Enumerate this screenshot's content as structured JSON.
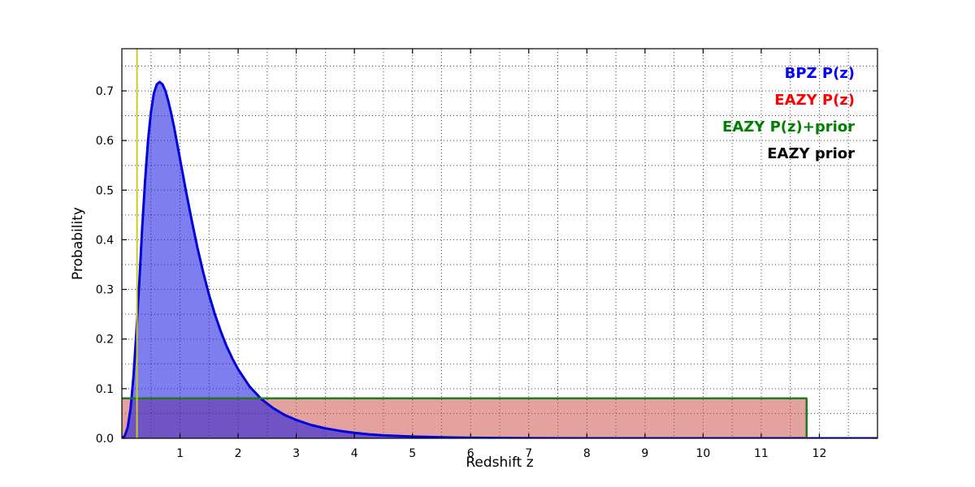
{
  "figure": {
    "background": "#ffffff",
    "frame_color": "#000000"
  },
  "chart_data": {
    "type": "line",
    "title": "",
    "xlabel": "Redshift z",
    "ylabel": "Probability",
    "xlim": [
      0,
      13
    ],
    "ylim": [
      0,
      0.785
    ],
    "grid": {
      "on": true,
      "x_step": 0.5,
      "y_step": 0.05,
      "style": "dotted"
    },
    "xticks": [
      {
        "v": 1,
        "label": "1"
      },
      {
        "v": 2,
        "label": "2"
      },
      {
        "v": 3,
        "label": "3"
      },
      {
        "v": 4,
        "label": "4"
      },
      {
        "v": 5,
        "label": "5"
      },
      {
        "v": 6,
        "label": "6"
      },
      {
        "v": 7,
        "label": "7"
      },
      {
        "v": 8,
        "label": "8"
      },
      {
        "v": 9,
        "label": "9"
      },
      {
        "v": 10,
        "label": "10"
      },
      {
        "v": 11,
        "label": "11"
      },
      {
        "v": 12,
        "label": "12"
      }
    ],
    "yticks": [
      {
        "v": 0.0,
        "label": "0.0"
      },
      {
        "v": 0.1,
        "label": "0.1"
      },
      {
        "v": 0.2,
        "label": "0.2"
      },
      {
        "v": 0.3,
        "label": "0.3"
      },
      {
        "v": 0.4,
        "label": "0.4"
      },
      {
        "v": 0.5,
        "label": "0.5"
      },
      {
        "v": 0.6,
        "label": "0.6"
      },
      {
        "v": 0.7,
        "label": "0.7"
      }
    ],
    "legend": {
      "position": "top-right",
      "entries": [
        {
          "label": "BPZ P(z)",
          "color": "#0000ff"
        },
        {
          "label": "EAZY P(z)",
          "color": "#ff0000"
        },
        {
          "label": "EAZY P(z)+prior",
          "color": "#008000"
        },
        {
          "label": "EAZY prior",
          "color": "#000000"
        }
      ]
    },
    "series": [
      {
        "id": "eazy-pz",
        "name": "EAZY P(z)",
        "stroke": "none",
        "stroke_width": 0,
        "fill": "rgba(200,70,60,0.5)",
        "baseline": 0,
        "points": [
          [
            0,
            0.082
          ],
          [
            11.78,
            0.082
          ],
          [
            11.78,
            0
          ]
        ]
      },
      {
        "id": "bpz-pz",
        "name": "BPZ P(z)",
        "stroke": "#0000dd",
        "stroke_width": 3,
        "fill": "rgba(20,20,225,0.55)",
        "baseline": 0,
        "points": [
          [
            0,
            0
          ],
          [
            0.05,
            0.005
          ],
          [
            0.1,
            0.022
          ],
          [
            0.15,
            0.06
          ],
          [
            0.2,
            0.125
          ],
          [
            0.25,
            0.215
          ],
          [
            0.3,
            0.315
          ],
          [
            0.35,
            0.425
          ],
          [
            0.4,
            0.52
          ],
          [
            0.45,
            0.6
          ],
          [
            0.5,
            0.657
          ],
          [
            0.55,
            0.695
          ],
          [
            0.6,
            0.713
          ],
          [
            0.65,
            0.718
          ],
          [
            0.7,
            0.713
          ],
          [
            0.75,
            0.7
          ],
          [
            0.8,
            0.679
          ],
          [
            0.85,
            0.654
          ],
          [
            0.9,
            0.626
          ],
          [
            1.0,
            0.563
          ],
          [
            1.1,
            0.5
          ],
          [
            1.2,
            0.44
          ],
          [
            1.3,
            0.384
          ],
          [
            1.4,
            0.334
          ],
          [
            1.5,
            0.289
          ],
          [
            1.6,
            0.25
          ],
          [
            1.7,
            0.216
          ],
          [
            1.8,
            0.186
          ],
          [
            1.9,
            0.161
          ],
          [
            2.0,
            0.139
          ],
          [
            2.2,
            0.104
          ],
          [
            2.4,
            0.079
          ],
          [
            2.6,
            0.061
          ],
          [
            2.8,
            0.047
          ],
          [
            3.0,
            0.037
          ],
          [
            3.25,
            0.027
          ],
          [
            3.5,
            0.02
          ],
          [
            3.75,
            0.015
          ],
          [
            4.0,
            0.011
          ],
          [
            4.25,
            0.008
          ],
          [
            4.5,
            0.006
          ],
          [
            5.0,
            0.0035
          ],
          [
            5.5,
            0.002
          ],
          [
            6.0,
            0.001
          ],
          [
            6.5,
            0.0006
          ],
          [
            7.0,
            0.0003
          ],
          [
            8.0,
            0.0001
          ],
          [
            13,
            0
          ]
        ]
      },
      {
        "id": "eazy-prior",
        "name": "EAZY prior",
        "stroke": "#000000",
        "stroke_width": 1.5,
        "fill": "none",
        "points": [
          [
            0,
            0.0805
          ],
          [
            11.78,
            0.0805
          ],
          [
            11.78,
            0
          ]
        ]
      },
      {
        "id": "eazy-pz-prior",
        "name": "EAZY P(z)+prior",
        "stroke": "#1f7a1f",
        "stroke_width": 2.5,
        "fill": "none",
        "points": [
          [
            0,
            0.0805
          ],
          [
            11.78,
            0.0805
          ],
          [
            11.78,
            0
          ]
        ]
      },
      {
        "id": "marker-line",
        "name": "vertical marker",
        "stroke": "#c9c926",
        "stroke_width": 2,
        "fill": "none",
        "points": [
          [
            0.26,
            0
          ],
          [
            0.26,
            0.785
          ]
        ]
      }
    ]
  }
}
